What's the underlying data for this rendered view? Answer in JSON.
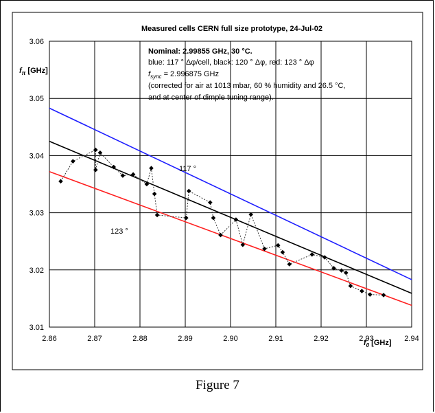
{
  "caption": "Figure 7",
  "chart_data": {
    "type": "line",
    "title": "Measured cells CERN full size prototype, 24-Jul-02",
    "xlabel_sym": "f",
    "xlabel_sub": "0",
    "xlabel_unit": " [GHz]",
    "ylabel_sym": "f",
    "ylabel_sub": "π",
    "ylabel_unit": " [GHz]",
    "xlim": [
      2.86,
      2.94
    ],
    "ylim": [
      3.01,
      3.06
    ],
    "x_ticks": [
      "2.86",
      "2.87",
      "2.88",
      "2.89",
      "2.90",
      "2.91",
      "2.92",
      "2.93",
      "2.94"
    ],
    "y_ticks": [
      "3.01",
      "3.02",
      "3.03",
      "3.04",
      "3.05",
      "3.06"
    ],
    "grid": true,
    "annotation": {
      "line1": "Nominal: 2.99855 GHz, 30 °C.",
      "line2": "blue: 117 ° Δφ/cell, black: 120 ° Δφ, red: 123 ° Δφ",
      "line3_sym": "f",
      "line3_sub": "sync",
      "line3_rest": " = 2.996875 GHz",
      "line4": "(corrected for air at 1013 mbar, 60 % humidity and 26.5 °C,",
      "line5": "and at center of dimple tuning range)."
    },
    "label_117": "117 °",
    "label_123": "123 °",
    "colors": {
      "blue": "#1f1fff",
      "black": "#000000",
      "red": "#ff2020",
      "measured": "#000000"
    },
    "series": [
      {
        "name": "blue",
        "color": "blue",
        "x": [
          2.86,
          2.94
        ],
        "y": [
          3.0483,
          3.0183
        ]
      },
      {
        "name": "black",
        "color": "black",
        "x": [
          2.86,
          2.94
        ],
        "y": [
          3.0425,
          3.0159
        ]
      },
      {
        "name": "red",
        "color": "red",
        "x": [
          2.86,
          2.94
        ],
        "y": [
          3.0372,
          3.0138
        ]
      }
    ],
    "measured": {
      "x": [
        2.8625,
        2.8652,
        2.8702,
        2.8702,
        2.8712,
        2.8742,
        2.8762,
        2.8785,
        2.8815,
        2.8825,
        2.8832,
        2.8838,
        2.8902,
        2.8908,
        2.8955,
        2.8962,
        2.8978,
        2.9012,
        2.9027,
        2.9045,
        2.9075,
        2.9105,
        2.9115,
        2.913,
        2.918,
        2.9208,
        2.9228,
        2.9245,
        2.9255,
        2.9265,
        2.929,
        2.9308,
        2.9338
      ],
      "y": [
        3.0355,
        3.039,
        3.041,
        3.0375,
        3.0405,
        3.038,
        3.0365,
        3.0367,
        3.035,
        3.0378,
        3.0333,
        3.0296,
        3.0291,
        3.0338,
        3.0318,
        3.0291,
        3.0261,
        3.0288,
        3.0244,
        3.0297,
        3.0237,
        3.0243,
        3.0231,
        3.021,
        3.0227,
        3.0222,
        3.0203,
        3.0199,
        3.0195,
        3.0172,
        3.0163,
        3.0157,
        3.0156
      ]
    }
  }
}
